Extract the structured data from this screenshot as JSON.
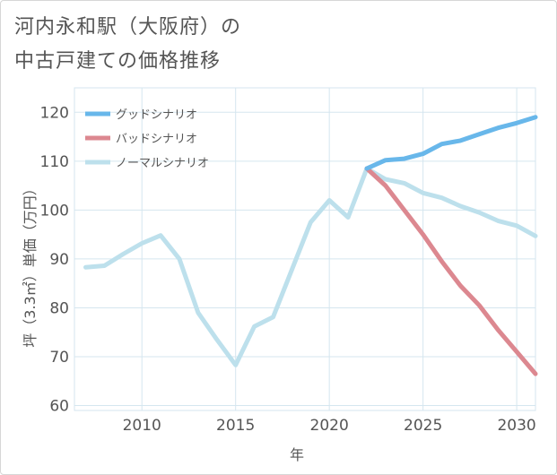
{
  "chart_data": {
    "type": "line",
    "title_lines": [
      "河内永和駅（大阪府）の",
      "中古戸建ての価格推移"
    ],
    "xlabel": "年",
    "ylabel": "坪（3.3㎡）単価（万円）",
    "xlim": [
      2006.4,
      2031
    ],
    "ylim": [
      59,
      125
    ],
    "xticks": [
      2010,
      2015,
      2020,
      2025,
      2030
    ],
    "yticks": [
      60,
      70,
      80,
      90,
      100,
      110,
      120
    ],
    "legend_position": "top-left",
    "series": [
      {
        "name": "グッドシナリオ",
        "color": "#68b7ea",
        "x": [
          2022,
          2023,
          2024,
          2025,
          2026,
          2027,
          2028,
          2029,
          2030,
          2031
        ],
        "y": [
          108.5,
          110.2,
          110.5,
          111.5,
          113.5,
          114.2,
          115.5,
          116.8,
          117.8,
          119
        ]
      },
      {
        "name": "バッドシナリオ",
        "color": "#dc8890",
        "x": [
          2022,
          2023,
          2024,
          2025,
          2026,
          2027,
          2028,
          2029,
          2030,
          2031
        ],
        "y": [
          108.5,
          105,
          100,
          95,
          89.5,
          84.5,
          80.5,
          75.5,
          71,
          66.5
        ]
      },
      {
        "name": "ノーマルシナリオ",
        "color": "#bde0ec",
        "x": [
          2007,
          2008,
          2009,
          2010,
          2011,
          2012,
          2013,
          2014,
          2015,
          2016,
          2017,
          2018,
          2019,
          2020,
          2021,
          2022,
          2023,
          2024,
          2025,
          2026,
          2027,
          2028,
          2029,
          2030,
          2031
        ],
        "y": [
          88.3,
          88.6,
          91,
          93.2,
          94.8,
          90,
          79,
          73.5,
          68.3,
          76.2,
          78.1,
          87.8,
          97.5,
          102,
          98.5,
          108.5,
          106.3,
          105.5,
          103.5,
          102.5,
          100.8,
          99.5,
          97.8,
          96.8,
          94.7
        ]
      }
    ]
  }
}
